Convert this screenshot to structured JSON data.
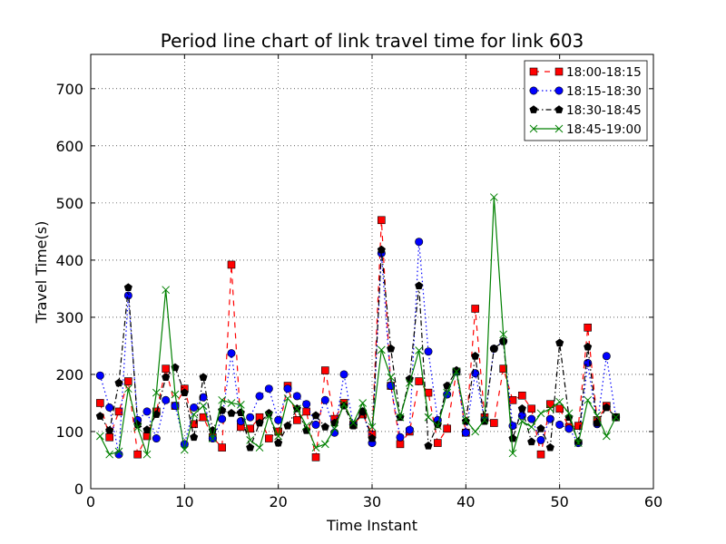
{
  "chart_data": {
    "type": "line",
    "title": "Period line chart of link travel time for link 603",
    "xlabel": "Time Instant",
    "ylabel": "Travel Time(s)",
    "xlim": [
      0,
      60
    ],
    "ylim": [
      0,
      760
    ],
    "xticks": [
      0,
      10,
      20,
      30,
      40,
      50,
      60
    ],
    "yticks": [
      0,
      100,
      200,
      300,
      400,
      500,
      600,
      700
    ],
    "grid": true,
    "legend_position": "top-right",
    "x": [
      1,
      2,
      3,
      4,
      5,
      6,
      7,
      8,
      9,
      10,
      11,
      12,
      13,
      14,
      15,
      16,
      17,
      18,
      19,
      20,
      21,
      22,
      23,
      24,
      25,
      26,
      27,
      28,
      29,
      30,
      31,
      32,
      33,
      34,
      35,
      36,
      37,
      38,
      39,
      40,
      41,
      42,
      43,
      44,
      45,
      46,
      47,
      48,
      49,
      50,
      51,
      52,
      53,
      54,
      55,
      56
    ],
    "series": [
      {
        "name": "18:00-18:15",
        "color": "#ff0000",
        "marker": "square",
        "line_style": "dashed",
        "values": [
          150,
          90,
          135,
          188,
          60,
          92,
          135,
          210,
          145,
          175,
          113,
          125,
          90,
          72,
          392,
          108,
          105,
          125,
          88,
          100,
          180,
          120,
          135,
          55,
          207,
          122,
          150,
          112,
          130,
          95,
          470,
          180,
          78,
          100,
          188,
          168,
          80,
          105,
          205,
          98,
          315,
          125,
          115,
          210,
          155,
          163,
          140,
          60,
          148,
          140,
          108,
          110,
          282,
          120,
          145,
          125
        ]
      },
      {
        "name": "18:15-18:30",
        "color": "#0000ff",
        "marker": "circle",
        "line_style": "dotted",
        "values": [
          198,
          142,
          60,
          338,
          120,
          135,
          88,
          155,
          145,
          78,
          142,
          160,
          88,
          122,
          237,
          118,
          125,
          162,
          175,
          120,
          175,
          162,
          148,
          112,
          155,
          98,
          200,
          112,
          135,
          80,
          412,
          180,
          90,
          103,
          432,
          240,
          120,
          165,
          205,
          98,
          202,
          120,
          245,
          258,
          110,
          128,
          122,
          85,
          122,
          112,
          105,
          80,
          220,
          113,
          232,
          125
        ]
      },
      {
        "name": "18:30-18:45",
        "color": "#000000",
        "marker": "pentagon",
        "line_style": "dashdot",
        "values": [
          127,
          102,
          185,
          352,
          112,
          103,
          130,
          195,
          212,
          168,
          90,
          195,
          102,
          137,
          132,
          133,
          72,
          115,
          132,
          80,
          110,
          140,
          102,
          128,
          108,
          115,
          145,
          110,
          135,
          88,
          418,
          245,
          125,
          192,
          355,
          75,
          112,
          180,
          207,
          118,
          232,
          118,
          245,
          258,
          88,
          140,
          82,
          105,
          72,
          255,
          125,
          82,
          248,
          115,
          142,
          125
        ]
      },
      {
        "name": "18:45-19:00",
        "color": "#008000",
        "marker": "x",
        "line_style": "solid",
        "values": [
          92,
          60,
          65,
          175,
          107,
          60,
          168,
          348,
          165,
          68,
          130,
          145,
          88,
          155,
          150,
          147,
          85,
          72,
          128,
          92,
          158,
          140,
          110,
          72,
          78,
          105,
          148,
          115,
          150,
          108,
          243,
          195,
          125,
          185,
          242,
          125,
          110,
          168,
          205,
          120,
          100,
          120,
          510,
          270,
          62,
          118,
          108,
          132,
          140,
          152,
          132,
          80,
          155,
          128,
          92,
          125
        ]
      }
    ]
  }
}
